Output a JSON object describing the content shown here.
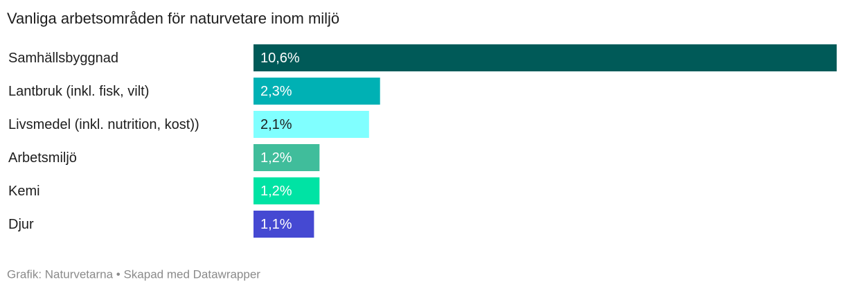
{
  "chart_data": {
    "type": "bar",
    "orientation": "horizontal",
    "title": "Vanliga arbetsområden för naturvetare inom miljö",
    "categories": [
      "Samhällsbyggnad",
      "Lantbruk (inkl. fisk, vilt)",
      "Livsmedel (inkl. nutrition, kost))",
      "Arbetsmiljö",
      "Kemi",
      "Djur"
    ],
    "values": [
      10.6,
      2.3,
      2.1,
      1.2,
      1.2,
      1.1
    ],
    "value_labels": [
      "10,6%",
      "2,3%",
      "2,1%",
      "1,2%",
      "1,2%",
      "1,1%"
    ],
    "colors": [
      "#005a58",
      "#00b1b4",
      "#80ffff",
      "#40bd9b",
      "#00e3a4",
      "#4549d2"
    ],
    "source": "Grafik: Naturvetarna • Skapad med Datawrapper"
  }
}
